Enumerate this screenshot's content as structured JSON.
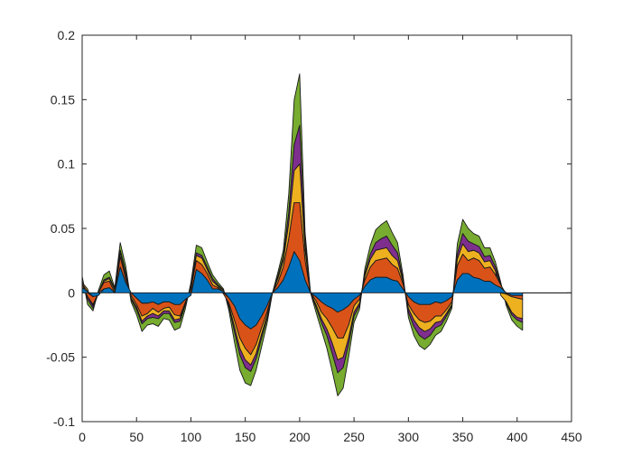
{
  "chart_data": {
    "type": "area",
    "title": "",
    "xlabel": "",
    "ylabel": "",
    "xlim": [
      0,
      450
    ],
    "ylim": [
      -0.1,
      0.2
    ],
    "x_ticks": [
      0,
      50,
      100,
      150,
      200,
      250,
      300,
      350,
      400,
      450
    ],
    "y_ticks": [
      -0.1,
      -0.05,
      0,
      0.05,
      0.1,
      0.15,
      0.2
    ],
    "x_tick_labels": [
      "0",
      "50",
      "100",
      "150",
      "200",
      "250",
      "300",
      "350",
      "400",
      "450"
    ],
    "y_tick_labels": [
      "-0.1",
      "-0.05",
      "0",
      "0.05",
      "0.1",
      "0.15",
      "0.2"
    ],
    "grid": false,
    "stacked": true,
    "x": [
      0,
      5,
      10,
      15,
      20,
      25,
      30,
      35,
      40,
      45,
      50,
      55,
      60,
      65,
      70,
      75,
      80,
      85,
      90,
      95,
      100,
      105,
      110,
      115,
      120,
      125,
      130,
      135,
      140,
      145,
      150,
      155,
      160,
      165,
      170,
      175,
      180,
      185,
      190,
      195,
      200,
      205,
      210,
      215,
      220,
      225,
      230,
      235,
      240,
      245,
      250,
      255,
      260,
      265,
      270,
      275,
      280,
      285,
      290,
      295,
      300,
      305,
      310,
      315,
      320,
      325,
      330,
      335,
      340,
      345,
      350,
      355,
      360,
      365,
      370,
      375,
      380,
      385,
      390,
      395,
      400,
      405
    ],
    "baseline_extent": [
      0,
      450
    ],
    "series": [
      {
        "color": "#0072BD",
        "values": [
          0.004,
          0.001,
          -0.003,
          -0.002,
          0.003,
          0.004,
          0.0,
          0.02,
          0.008,
          0.0,
          -0.004,
          -0.008,
          -0.008,
          -0.007,
          -0.009,
          -0.007,
          -0.007,
          -0.009,
          -0.009,
          -0.005,
          -0.002,
          0.018,
          0.015,
          0.01,
          0.003,
          0.003,
          0.001,
          -0.004,
          -0.01,
          -0.02,
          -0.025,
          -0.028,
          -0.025,
          -0.018,
          -0.01,
          0.0,
          0.004,
          0.01,
          0.02,
          0.032,
          0.025,
          0.01,
          0.0,
          -0.003,
          -0.007,
          -0.01,
          -0.012,
          -0.015,
          -0.013,
          -0.01,
          -0.005,
          -0.002,
          0.005,
          0.01,
          0.012,
          0.012,
          0.012,
          0.01,
          0.009,
          0.003,
          -0.003,
          -0.007,
          -0.009,
          -0.009,
          -0.009,
          -0.007,
          -0.008,
          -0.006,
          -0.003,
          0.01,
          0.015,
          0.015,
          0.012,
          0.011,
          0.009,
          0.009,
          0.006,
          0.004,
          0.0,
          -0.002,
          -0.002,
          -0.002
        ]
      },
      {
        "color": "#D95319",
        "values": [
          0.003,
          -0.003,
          -0.006,
          0.0,
          0.005,
          0.005,
          0.0,
          0.008,
          0.003,
          -0.002,
          -0.005,
          -0.01,
          -0.008,
          -0.005,
          -0.006,
          -0.005,
          -0.004,
          -0.008,
          -0.009,
          -0.002,
          0.003,
          0.007,
          0.007,
          0.005,
          0.003,
          0.001,
          -0.001,
          -0.004,
          -0.011,
          -0.015,
          -0.018,
          -0.02,
          -0.015,
          -0.009,
          -0.005,
          0.0,
          0.004,
          0.01,
          0.022,
          0.038,
          0.045,
          0.015,
          0.0,
          -0.003,
          -0.008,
          -0.01,
          -0.015,
          -0.02,
          -0.022,
          -0.015,
          -0.005,
          -0.003,
          0.005,
          0.01,
          0.013,
          0.014,
          0.015,
          0.012,
          0.01,
          0.004,
          -0.006,
          -0.009,
          -0.012,
          -0.014,
          -0.013,
          -0.011,
          -0.01,
          -0.007,
          -0.004,
          0.011,
          0.015,
          0.01,
          0.015,
          0.014,
          0.01,
          0.011,
          0.008,
          0.002,
          -0.001,
          -0.001,
          -0.002,
          -0.003
        ]
      },
      {
        "color": "#EDB120",
        "values": [
          0.001,
          0.002,
          -0.001,
          0.0,
          0.001,
          0.002,
          0.002,
          0.003,
          0.003,
          -0.002,
          -0.002,
          -0.004,
          -0.002,
          -0.004,
          -0.003,
          -0.002,
          -0.003,
          -0.004,
          -0.002,
          -0.001,
          0.001,
          0.004,
          0.005,
          0.003,
          0.003,
          0.001,
          0.001,
          -0.002,
          -0.005,
          -0.008,
          -0.009,
          -0.008,
          -0.007,
          -0.005,
          -0.003,
          0.0,
          0.003,
          0.005,
          0.012,
          0.025,
          0.03,
          0.008,
          0.0,
          -0.003,
          -0.005,
          -0.008,
          -0.012,
          -0.017,
          -0.015,
          -0.01,
          -0.005,
          -0.003,
          0.003,
          0.006,
          0.008,
          0.008,
          0.008,
          0.007,
          0.006,
          0.002,
          -0.003,
          -0.005,
          -0.006,
          -0.007,
          -0.006,
          -0.005,
          -0.004,
          -0.003,
          -0.002,
          0.005,
          0.008,
          0.007,
          0.006,
          0.006,
          0.005,
          0.005,
          0.003,
          -0.002,
          -0.006,
          -0.012,
          -0.015,
          -0.015
        ]
      },
      {
        "color": "#7E2F8E",
        "values": [
          0.001,
          -0.002,
          -0.002,
          0.0,
          0.001,
          0.001,
          0.001,
          0.002,
          0.002,
          -0.001,
          -0.002,
          -0.002,
          -0.002,
          -0.003,
          -0.002,
          -0.002,
          -0.002,
          -0.002,
          -0.002,
          -0.001,
          0.001,
          0.002,
          0.002,
          0.002,
          0.002,
          0.001,
          0.0,
          -0.001,
          -0.004,
          -0.005,
          -0.006,
          -0.005,
          -0.004,
          -0.003,
          -0.002,
          0.0,
          0.002,
          0.003,
          0.008,
          0.02,
          0.03,
          0.006,
          0.0,
          -0.002,
          -0.003,
          -0.005,
          -0.008,
          -0.01,
          -0.008,
          -0.005,
          -0.003,
          -0.002,
          0.002,
          0.004,
          0.006,
          0.008,
          0.009,
          0.008,
          0.006,
          0.002,
          -0.003,
          -0.005,
          -0.006,
          -0.006,
          -0.005,
          -0.004,
          -0.003,
          -0.002,
          -0.001,
          0.004,
          0.008,
          0.008,
          0.005,
          0.005,
          0.004,
          0.004,
          0.003,
          0.001,
          -0.001,
          -0.002,
          -0.002,
          -0.003
        ]
      },
      {
        "color": "#77AC30",
        "values": [
          0.004,
          -0.004,
          -0.002,
          0.002,
          0.004,
          0.005,
          0.001,
          0.006,
          0.005,
          -0.002,
          -0.004,
          -0.006,
          -0.005,
          -0.005,
          -0.006,
          -0.004,
          -0.005,
          -0.006,
          -0.005,
          -0.003,
          0.003,
          0.006,
          0.006,
          0.004,
          0.003,
          0.002,
          0.001,
          -0.003,
          -0.008,
          -0.012,
          -0.012,
          -0.011,
          -0.009,
          -0.007,
          -0.004,
          0.0,
          0.003,
          0.005,
          0.015,
          0.035,
          0.04,
          0.008,
          0.0,
          -0.004,
          -0.006,
          -0.01,
          -0.014,
          -0.018,
          -0.016,
          -0.01,
          -0.005,
          -0.003,
          0.004,
          0.007,
          0.01,
          0.011,
          0.012,
          0.01,
          0.008,
          0.003,
          -0.004,
          -0.007,
          -0.008,
          -0.008,
          -0.007,
          -0.006,
          -0.005,
          -0.004,
          -0.002,
          0.008,
          0.011,
          0.01,
          0.008,
          0.008,
          0.007,
          0.006,
          0.004,
          0.001,
          -0.002,
          -0.004,
          -0.005,
          -0.006
        ]
      }
    ]
  }
}
